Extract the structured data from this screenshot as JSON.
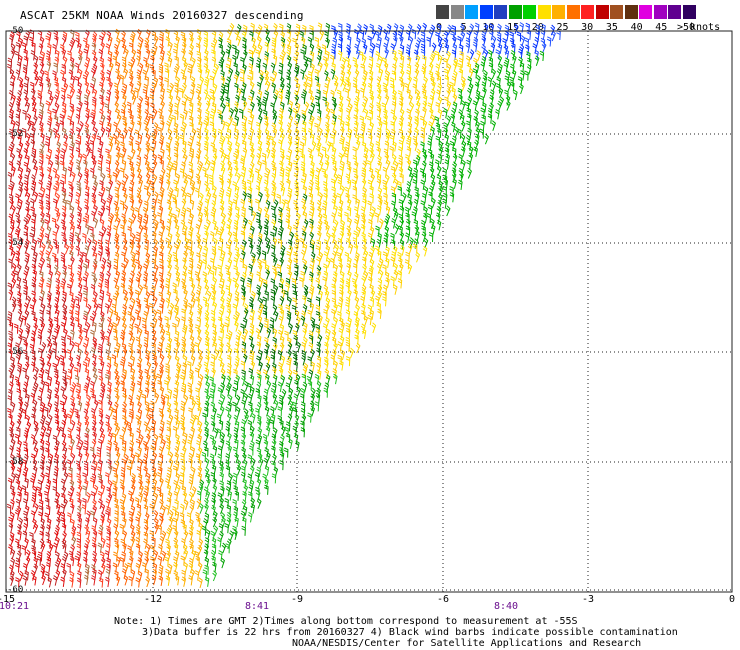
{
  "title": "ASCAT 25KM NOAA Winds 20160327 descending",
  "legend": {
    "colors": [
      "#444444",
      "#888888",
      "#00a0ff",
      "#0040ff",
      "#2040c0",
      "#00a000",
      "#00d000",
      "#ffe000",
      "#ffb000",
      "#ff7000",
      "#ff2020",
      "#c00000",
      "#a05020",
      "#603010",
      "#e000e0",
      "#a000c0",
      "#600090",
      "#300060"
    ],
    "ticks": [
      "0",
      "5",
      "10",
      "15",
      "20",
      "25",
      "30",
      "35",
      "40",
      "45",
      ">50"
    ],
    "units": "knots"
  },
  "map": {
    "lat_labels": [
      "-50",
      "-52",
      "-54",
      "-56",
      "-58",
      "-60"
    ],
    "lon_labels": [
      "-15",
      "-12",
      "-9",
      "-6",
      "-3",
      "0"
    ],
    "time_labels": [
      "10:21",
      "8:41",
      "8:40"
    ]
  },
  "notes": {
    "line1": "Note: 1) Times are GMT 2)Times along bottom correspond to measurement at -55S",
    "line2": "3)Data buffer is 22 hrs from 20160327 4) Black wind barbs indicate possible contamination",
    "line3": "NOAA/NESDIS/Center for Satellite Applications and Research"
  }
}
